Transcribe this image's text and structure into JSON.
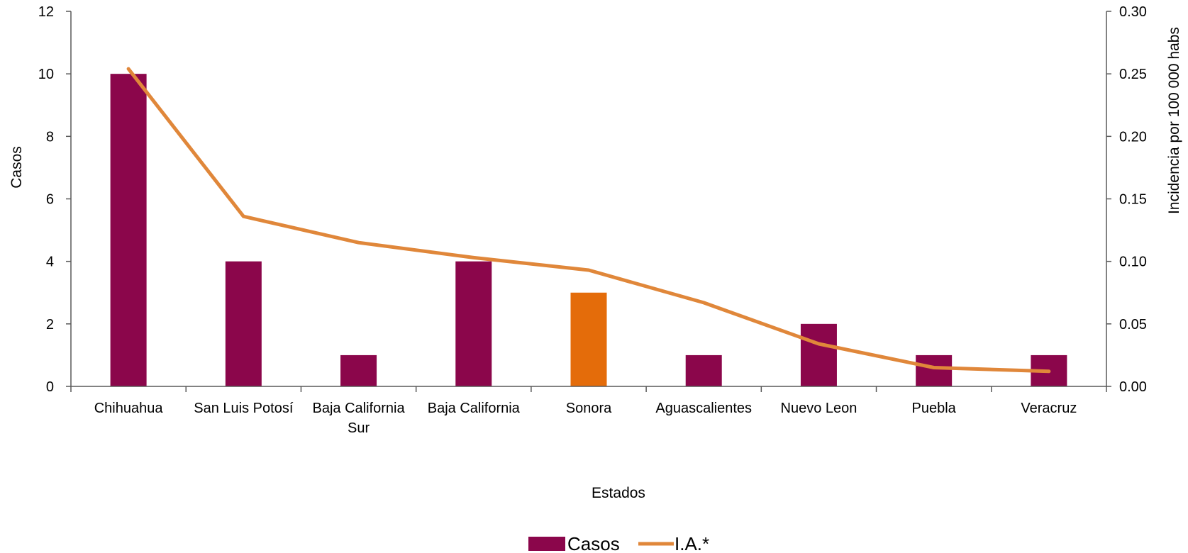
{
  "chart_data": {
    "type": "bar",
    "categories": [
      [
        "Chihuahua"
      ],
      [
        "San Luis Potosí"
      ],
      [
        "Baja California",
        "Sur"
      ],
      [
        "Baja California"
      ],
      [
        "Sonora"
      ],
      [
        "Aguascalientes"
      ],
      [
        "Nuevo Leon"
      ],
      [
        "Puebla"
      ],
      [
        "Veracruz"
      ]
    ],
    "series": [
      {
        "name": "Casos",
        "type": "bar",
        "axis": "left",
        "values": [
          10,
          4,
          1,
          4,
          3,
          1,
          2,
          1,
          1
        ],
        "color": "#8b064b",
        "highlight_index": 4,
        "highlight_color": "#e46c0a"
      },
      {
        "name": "I.A.*",
        "type": "line",
        "axis": "right",
        "values": [
          0.254,
          0.136,
          0.115,
          0.103,
          0.093,
          0.067,
          0.034,
          0.015,
          0.012
        ],
        "color": "#e0873a"
      }
    ],
    "xlabel": "Estados",
    "ylabel": "Casos",
    "y2label": "Incidencia por 100 000 habs",
    "ylim": [
      0,
      12
    ],
    "yticks": [
      "0",
      "2",
      "4",
      "6",
      "8",
      "10",
      "12"
    ],
    "y2lim": [
      0,
      0.3
    ],
    "y2ticks": [
      "0.00",
      "0.05",
      "0.10",
      "0.15",
      "0.20",
      "0.25",
      "0.30"
    ],
    "grid": false,
    "legend_position": "bottom-center"
  }
}
